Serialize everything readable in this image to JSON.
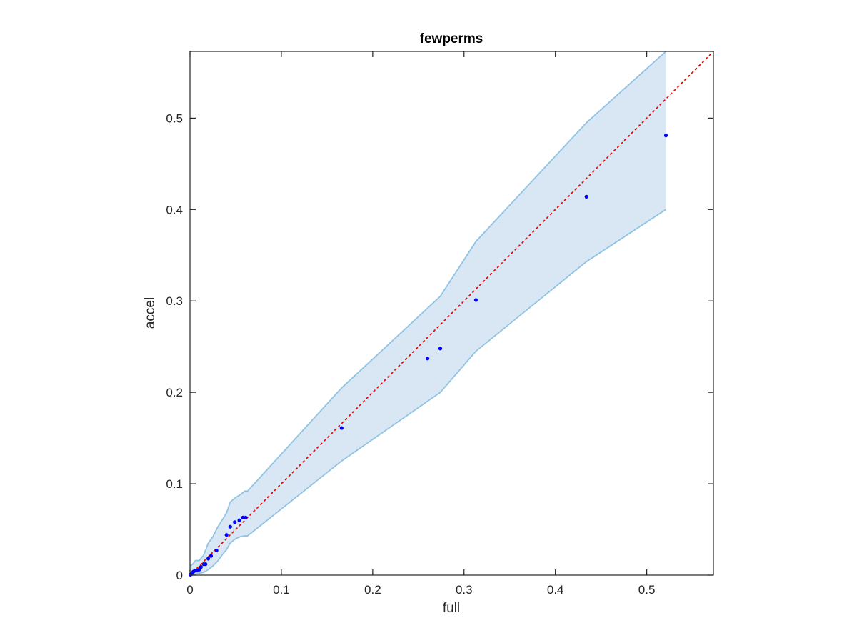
{
  "chart_data": {
    "type": "scatter",
    "title": "fewperms",
    "xlabel": "full",
    "ylabel": "accel",
    "xlim": [
      0,
      0.573
    ],
    "ylim": [
      0,
      0.573
    ],
    "xticks": [
      0,
      0.1,
      0.2,
      0.3,
      0.4,
      0.5
    ],
    "yticks": [
      0,
      0.1,
      0.2,
      0.3,
      0.4,
      0.5
    ],
    "xtick_labels": [
      "0",
      "0.1",
      "0.2",
      "0.3",
      "0.4",
      "0.5"
    ],
    "ytick_labels": [
      "0",
      "0.1",
      "0.2",
      "0.3",
      "0.4",
      "0.5"
    ],
    "grid": false,
    "points": {
      "color": "#0000ff",
      "x": [
        0.0005,
        0.001,
        0.002,
        0.003,
        0.004,
        0.006,
        0.008,
        0.01,
        0.012,
        0.015,
        0.017,
        0.02,
        0.023,
        0.029,
        0.04,
        0.044,
        0.049,
        0.054,
        0.058,
        0.061,
        0.166,
        0.26,
        0.274,
        0.313,
        0.434,
        0.521
      ],
      "y": [
        0.0005,
        0.001,
        0.002,
        0.003,
        0.004,
        0.005,
        0.005,
        0.006,
        0.009,
        0.012,
        0.012,
        0.018,
        0.021,
        0.027,
        0.044,
        0.053,
        0.058,
        0.06,
        0.063,
        0.063,
        0.161,
        0.237,
        0.248,
        0.301,
        0.414,
        0.481
      ]
    },
    "band": {
      "color": "#d9e7f4",
      "edge_color": "#8fc3e3",
      "x": [
        0,
        0.003,
        0.006,
        0.01,
        0.015,
        0.02,
        0.025,
        0.03,
        0.035,
        0.04,
        0.044,
        0.05,
        0.055,
        0.06,
        0.063,
        0.166,
        0.274,
        0.313,
        0.434,
        0.521
      ],
      "upper": [
        0.01,
        0.012,
        0.016,
        0.016,
        0.022,
        0.035,
        0.042,
        0.052,
        0.06,
        0.068,
        0.08,
        0.085,
        0.088,
        0.092,
        0.092,
        0.205,
        0.305,
        0.365,
        0.495,
        0.573
      ],
      "lower": [
        0,
        0,
        0.001,
        0.002,
        0.003,
        0.006,
        0.01,
        0.015,
        0.022,
        0.028,
        0.035,
        0.04,
        0.042,
        0.043,
        0.043,
        0.125,
        0.2,
        0.245,
        0.343,
        0.4
      ]
    },
    "reference_line": {
      "color": "#ff0000",
      "style": "dotted",
      "x": [
        0,
        0.573
      ],
      "y": [
        0,
        0.573
      ]
    }
  }
}
